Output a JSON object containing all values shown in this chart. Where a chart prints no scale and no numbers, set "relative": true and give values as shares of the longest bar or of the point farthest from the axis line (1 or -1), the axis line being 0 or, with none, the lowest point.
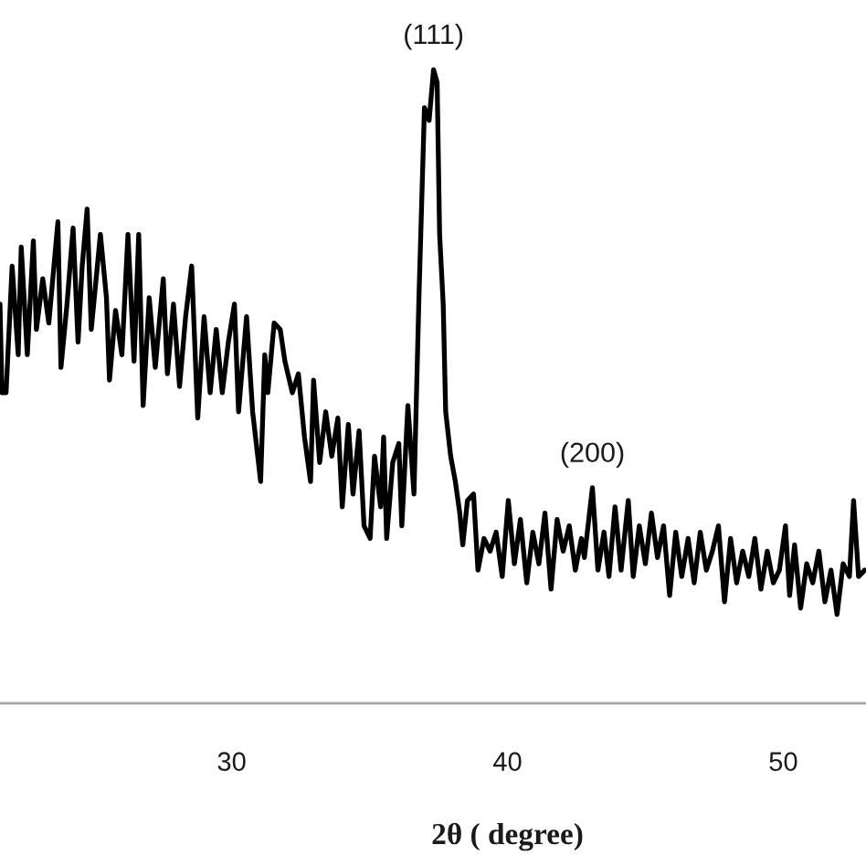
{
  "chart_data": {
    "type": "line",
    "xlabel": "2θ ( degree)",
    "relative": true,
    "color": "#000000",
    "xlim": [
      21.6,
      53.0
    ],
    "xticks": [
      30,
      40,
      50
    ],
    "x": [
      21.6,
      21.67,
      21.82,
      22.04,
      22.26,
      22.37,
      22.59,
      22.81,
      22.92,
      23.15,
      23.37,
      23.7,
      23.81,
      24.03,
      24.25,
      24.43,
      24.58,
      24.76,
      24.91,
      25.24,
      25.46,
      25.57,
      25.79,
      26.02,
      26.24,
      26.46,
      26.63,
      26.79,
      27.01,
      27.23,
      27.52,
      27.67,
      27.89,
      28.11,
      28.33,
      28.55,
      28.77,
      29.0,
      29.22,
      29.44,
      29.66,
      29.88,
      30.1,
      30.25,
      30.54,
      30.76,
      31.05,
      31.2,
      31.31,
      31.54,
      31.76,
      31.93,
      32.2,
      32.42,
      32.64,
      32.86,
      32.97,
      33.19,
      33.41,
      33.63,
      33.85,
      34.01,
      34.23,
      34.4,
      34.62,
      34.8,
      35.02,
      35.18,
      35.4,
      35.51,
      35.62,
      35.84,
      36.06,
      36.17,
      36.39,
      36.61,
      36.79,
      36.99,
      37.16,
      37.32,
      37.45,
      37.54,
      37.67,
      37.76,
      37.94,
      38.11,
      38.27,
      38.38,
      38.55,
      38.77,
      38.93,
      39.15,
      39.37,
      39.59,
      39.81,
      40.03,
      40.25,
      40.47,
      40.7,
      40.92,
      41.14,
      41.36,
      41.58,
      41.8,
      42.02,
      42.24,
      42.46,
      42.68,
      42.79,
      43.08,
      43.28,
      43.5,
      43.68,
      43.9,
      44.12,
      44.38,
      44.56,
      44.78,
      45.0,
      45.22,
      45.44,
      45.66,
      45.88,
      46.1,
      46.32,
      46.55,
      46.77,
      46.99,
      47.21,
      47.43,
      47.65,
      47.87,
      48.09,
      48.31,
      48.53,
      48.75,
      48.97,
      49.19,
      49.42,
      49.64,
      49.86,
      50.08,
      50.23,
      50.41,
      50.63,
      50.85,
      51.07,
      51.29,
      51.51,
      51.73,
      51.95,
      52.17,
      52.4,
      52.55,
      52.73,
      52.95
    ],
    "values": [
      0.63,
      0.49,
      0.49,
      0.69,
      0.55,
      0.72,
      0.55,
      0.73,
      0.59,
      0.67,
      0.6,
      0.76,
      0.53,
      0.63,
      0.75,
      0.57,
      0.69,
      0.78,
      0.59,
      0.74,
      0.64,
      0.51,
      0.62,
      0.55,
      0.74,
      0.54,
      0.74,
      0.47,
      0.64,
      0.53,
      0.67,
      0.52,
      0.63,
      0.5,
      0.61,
      0.69,
      0.45,
      0.61,
      0.49,
      0.59,
      0.49,
      0.57,
      0.63,
      0.46,
      0.61,
      0.46,
      0.35,
      0.55,
      0.49,
      0.6,
      0.59,
      0.54,
      0.49,
      0.52,
      0.42,
      0.35,
      0.51,
      0.38,
      0.46,
      0.39,
      0.45,
      0.31,
      0.44,
      0.33,
      0.43,
      0.28,
      0.26,
      0.39,
      0.31,
      0.42,
      0.26,
      0.38,
      0.41,
      0.28,
      0.47,
      0.33,
      0.64,
      0.94,
      0.92,
      1.0,
      0.98,
      0.74,
      0.63,
      0.46,
      0.39,
      0.35,
      0.3,
      0.25,
      0.32,
      0.33,
      0.21,
      0.26,
      0.24,
      0.27,
      0.2,
      0.32,
      0.22,
      0.29,
      0.19,
      0.27,
      0.22,
      0.3,
      0.18,
      0.29,
      0.24,
      0.28,
      0.21,
      0.26,
      0.23,
      0.34,
      0.21,
      0.27,
      0.2,
      0.31,
      0.21,
      0.32,
      0.2,
      0.28,
      0.22,
      0.3,
      0.23,
      0.28,
      0.17,
      0.27,
      0.2,
      0.26,
      0.19,
      0.27,
      0.21,
      0.24,
      0.28,
      0.16,
      0.26,
      0.19,
      0.24,
      0.2,
      0.26,
      0.18,
      0.24,
      0.19,
      0.21,
      0.28,
      0.17,
      0.25,
      0.15,
      0.22,
      0.19,
      0.24,
      0.16,
      0.21,
      0.14,
      0.22,
      0.2,
      0.32,
      0.2,
      0.21
    ],
    "annotations": [
      {
        "text": "(111)",
        "x": 37.32,
        "y": 1.0
      },
      {
        "text": "(200)",
        "x": 43.08,
        "y": 0.34
      }
    ]
  }
}
